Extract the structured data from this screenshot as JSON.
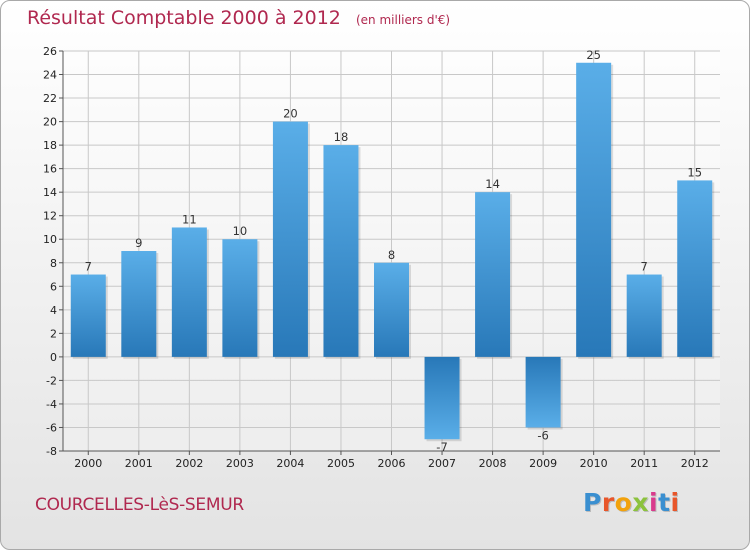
{
  "title": "Résultat Comptable 2000 à 2012",
  "subtitle": "(en milliers d'€)",
  "commune": "COURCELLES-LèS-SEMUR",
  "logo_text": "Proxiti",
  "colors": {
    "title": "#b0284f",
    "bar_light": "#5aaee8",
    "bar_dark": "#2878b8",
    "grid": "#c8c8c8"
  },
  "chart_data": {
    "type": "bar",
    "title": "Résultat Comptable 2000 à 2012",
    "subtitle": "(en milliers d'€)",
    "categories": [
      "2000",
      "2001",
      "2002",
      "2003",
      "2004",
      "2005",
      "2006",
      "2007",
      "2008",
      "2009",
      "2010",
      "2011",
      "2012"
    ],
    "values": [
      7,
      9,
      11,
      10,
      20,
      18,
      8,
      -7,
      14,
      -6,
      25,
      7,
      15
    ],
    "ylim": [
      -8,
      26
    ],
    "yticks": [
      -8,
      -6,
      -4,
      -2,
      0,
      2,
      4,
      6,
      8,
      10,
      12,
      14,
      16,
      18,
      20,
      22,
      24,
      26
    ],
    "grid": true,
    "legend": "none"
  }
}
